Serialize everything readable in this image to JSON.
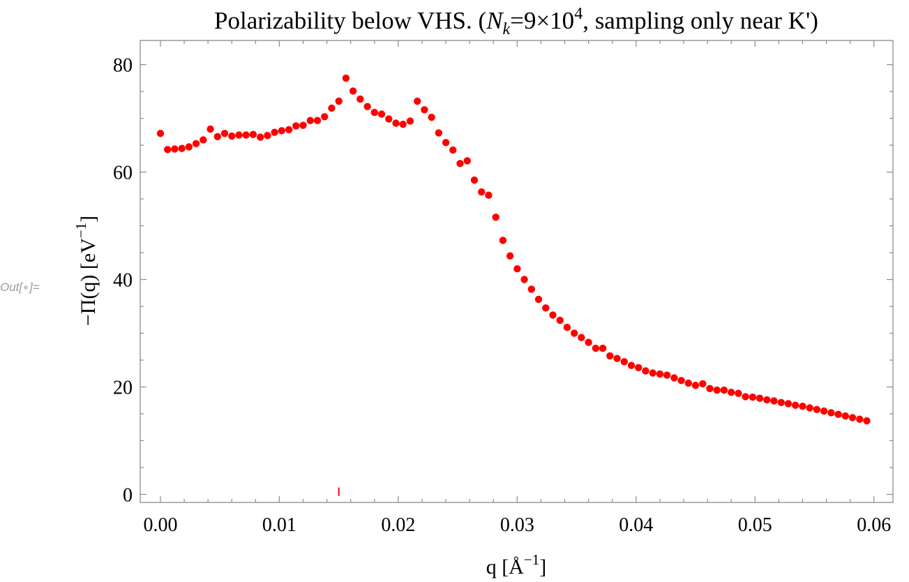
{
  "cell_label": {
    "prefix": "Out[",
    "suffix": "]="
  },
  "chart_data": {
    "type": "scatter",
    "title": "Polarizability below VHS. (N_k=9×10^4, sampling only near K')",
    "title_parts": {
      "lead": "Polarizability below VHS. (",
      "N": "N",
      "sub": "k",
      "mid": "=9×10",
      "sup": "4",
      "tail": ", sampling only near K')"
    },
    "xlabel": "q [Å^-1]",
    "xlabel_parts": {
      "lead": "q [Å",
      "sup": "−1",
      "tail": "]"
    },
    "ylabel": "−Π(q) [eV^-1]",
    "ylabel_parts": {
      "lead": "−Π(q) [eV",
      "sup": "−1",
      "tail": "]"
    },
    "xlim": [
      -0.0017,
      0.0616
    ],
    "ylim": [
      -1.5,
      84.5
    ],
    "x_ticks": [
      0.0,
      0.01,
      0.02,
      0.03,
      0.04,
      0.05,
      0.06
    ],
    "x_tick_labels": [
      "0.00",
      "0.01",
      "0.02",
      "0.03",
      "0.04",
      "0.05",
      "0.06"
    ],
    "y_ticks": [
      0,
      20,
      40,
      60,
      80
    ],
    "y_tick_labels": [
      "0",
      "20",
      "40",
      "60",
      "80"
    ],
    "grid": false,
    "point_color": "#ff0000",
    "series": [
      {
        "x": [
          0.0,
          0.0006,
          0.0012,
          0.0018,
          0.0024,
          0.003,
          0.0036,
          0.0042,
          0.0048,
          0.0054,
          0.006,
          0.0066,
          0.0072,
          0.0078,
          0.0084,
          0.009,
          0.0096,
          0.0102,
          0.0108,
          0.0114,
          0.012,
          0.0126,
          0.0132,
          0.0138,
          0.0144,
          0.015,
          0.0156,
          0.0162,
          0.0168,
          0.0174,
          0.018,
          0.0186,
          0.0192,
          0.0198,
          0.0204,
          0.021,
          0.0216,
          0.0222,
          0.0228,
          0.0234,
          0.024,
          0.0246,
          0.0252,
          0.0258,
          0.0264,
          0.027,
          0.0276,
          0.0282,
          0.0288,
          0.0294,
          0.03,
          0.0306,
          0.0312,
          0.0318,
          0.0324,
          0.033,
          0.0336,
          0.0342,
          0.0348,
          0.0354,
          0.036,
          0.0366,
          0.0372,
          0.0378,
          0.0384,
          0.039,
          0.0396,
          0.0402,
          0.0408,
          0.0414,
          0.042,
          0.0426,
          0.0432,
          0.0438,
          0.0444,
          0.045,
          0.0456,
          0.0462,
          0.0468,
          0.0474,
          0.048,
          0.0486,
          0.0492,
          0.0498,
          0.0504,
          0.051,
          0.0516,
          0.0522,
          0.0528,
          0.0534,
          0.054,
          0.0546,
          0.0552,
          0.0558,
          0.0564,
          0.057,
          0.0576,
          0.0582,
          0.0588,
          0.0594
        ],
        "y": [
          67.2,
          64.2,
          64.3,
          64.4,
          64.7,
          65.3,
          66.0,
          68.0,
          66.6,
          67.2,
          66.7,
          66.9,
          66.9,
          67.0,
          66.5,
          66.8,
          67.4,
          67.7,
          67.9,
          68.6,
          68.7,
          69.6,
          69.6,
          70.3,
          71.9,
          73.2,
          77.5,
          75.1,
          73.6,
          72.2,
          71.1,
          70.8,
          69.9,
          69.1,
          68.9,
          69.5,
          73.2,
          71.6,
          70.2,
          67.3,
          65.5,
          64.1,
          61.6,
          62.1,
          58.5,
          56.3,
          55.7,
          51.6,
          47.3,
          44.4,
          42.0,
          40.0,
          38.2,
          36.3,
          34.7,
          33.4,
          32.4,
          31.1,
          30.0,
          29.2,
          28.3,
          27.2,
          27.2,
          25.8,
          25.3,
          24.7,
          24.0,
          23.6,
          23.0,
          22.6,
          22.4,
          22.2,
          21.7,
          21.2,
          20.7,
          20.3,
          20.6,
          19.7,
          19.4,
          19.4,
          19.0,
          18.8,
          18.2,
          18.1,
          17.9,
          17.6,
          17.4,
          17.1,
          16.9,
          16.6,
          16.4,
          16.1,
          15.8,
          15.5,
          15.2,
          14.9,
          14.6,
          14.3,
          14.0,
          13.7
        ]
      },
      {
        "x": [
          0.015
        ],
        "y": [
          0.5
        ],
        "marker": "tick"
      }
    ]
  }
}
